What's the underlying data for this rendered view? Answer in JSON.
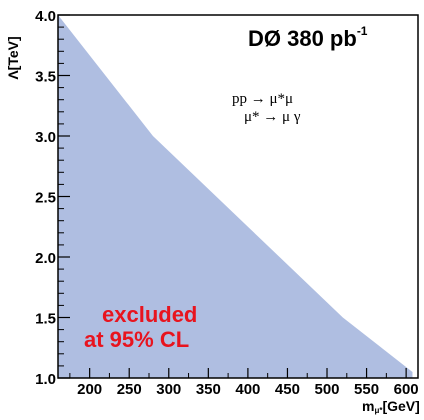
{
  "chart_data": {
    "type": "area",
    "title": "DØ 380 pb",
    "title_superscript": "-1",
    "process_line1": "pp → μ*μ",
    "process_line2": "μ* → μ γ",
    "xlabel_main": "m",
    "xlabel_sub": "μ*",
    "xlabel_unit": "[GeV]",
    "ylabel": "Λ[TeV]",
    "xlim": [
      160,
      615
    ],
    "ylim": [
      1.0,
      4.0
    ],
    "x_ticks": [
      200,
      250,
      300,
      350,
      400,
      450,
      500,
      550,
      600
    ],
    "y_ticks": [
      "1.0",
      "1.5",
      "2.0",
      "2.5",
      "3.0",
      "3.5",
      "4.0"
    ],
    "series": [
      {
        "x": [
          160,
          280,
          400,
          520,
          608
        ],
        "y": [
          4.0,
          3.0,
          2.25,
          1.5,
          1.05
        ]
      }
    ],
    "annotation_line1": "excluded",
    "annotation_line2": "at 95% CL",
    "fill_color": "#afbee1",
    "annotation_color": "#e8141e",
    "legend": "none",
    "grid": false
  }
}
